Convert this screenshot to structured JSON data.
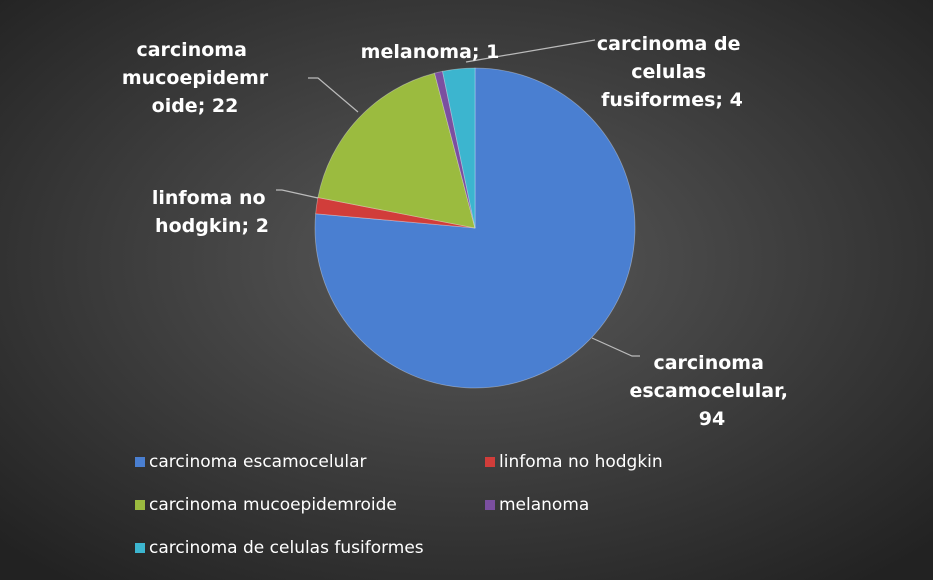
{
  "chart_data": {
    "type": "pie",
    "categories": [
      "carcinoma escamocelular",
      "linfoma no hodgkin",
      "carcinoma mucoepidemroide",
      "melanoma",
      "carcinoma de celulas fusiformes"
    ],
    "values": [
      94,
      2,
      22,
      1,
      4
    ],
    "value_labels": [
      "carcinoma escamocelular, 94",
      "linfoma no hodgkin; 2",
      "carcinoma mucoepidemroide; 22",
      "melanoma; 1",
      "carcinoma de celulas fusiformes; 4"
    ],
    "colors": [
      "#4a7fd1",
      "#d13d3a",
      "#9bbb3f",
      "#7b4fa0",
      "#3cb5cf"
    ],
    "legend": "bottom"
  }
}
